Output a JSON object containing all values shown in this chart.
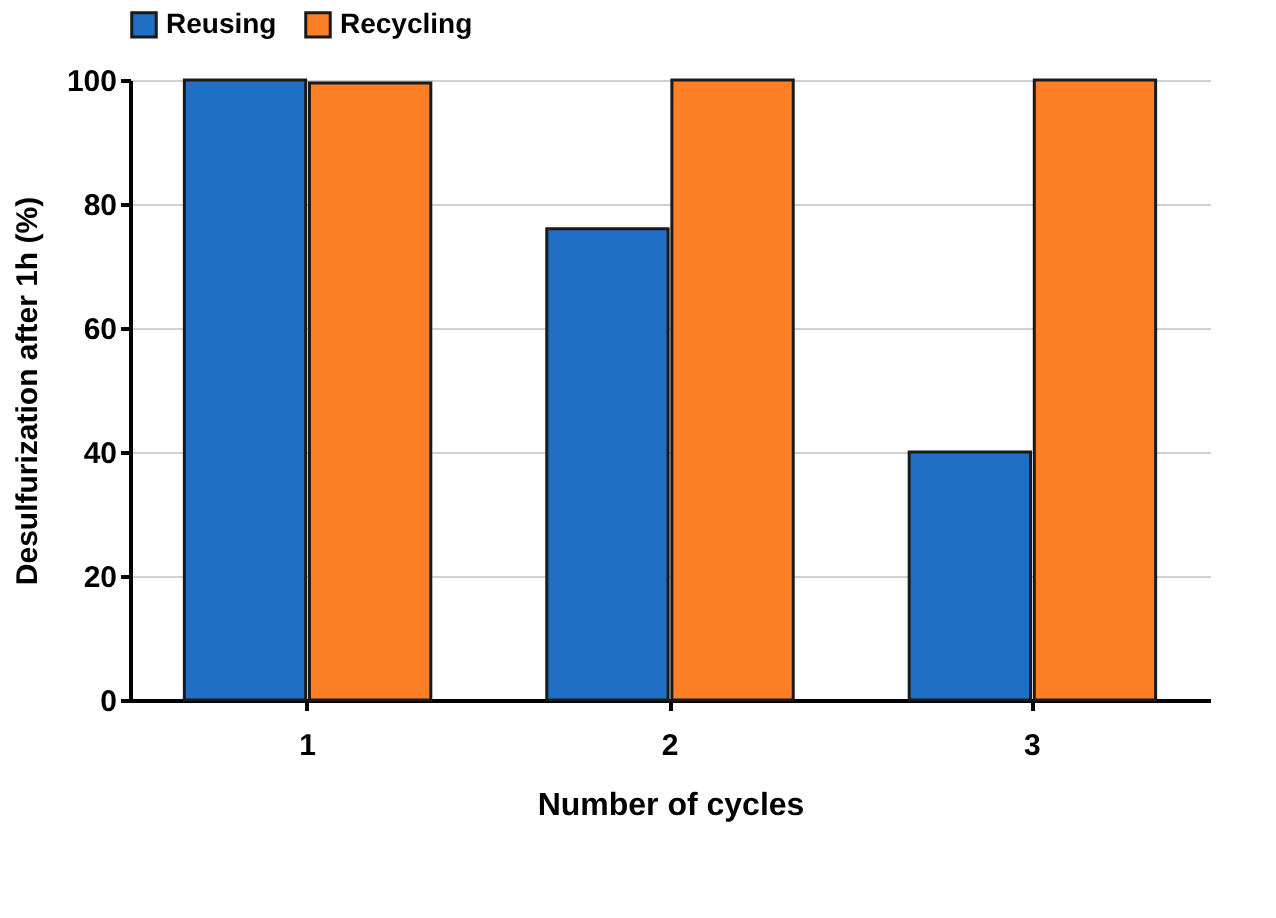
{
  "chart_data": {
    "type": "bar",
    "xlabel": "Number of cycles",
    "ylabel": "Desulfurization after 1h (%)",
    "categories": [
      "1",
      "2",
      "3"
    ],
    "series": [
      {
        "name": "Reusing",
        "color": "#1f6fc6",
        "values": [
          100,
          76,
          40
        ]
      },
      {
        "name": "Recycling",
        "color": "#fd7f26",
        "values": [
          99.5,
          100,
          100
        ]
      }
    ],
    "ylim": [
      0,
      100
    ],
    "yticks": [
      0,
      20,
      40,
      60,
      80,
      100
    ],
    "grid": "y",
    "legend": "top"
  }
}
